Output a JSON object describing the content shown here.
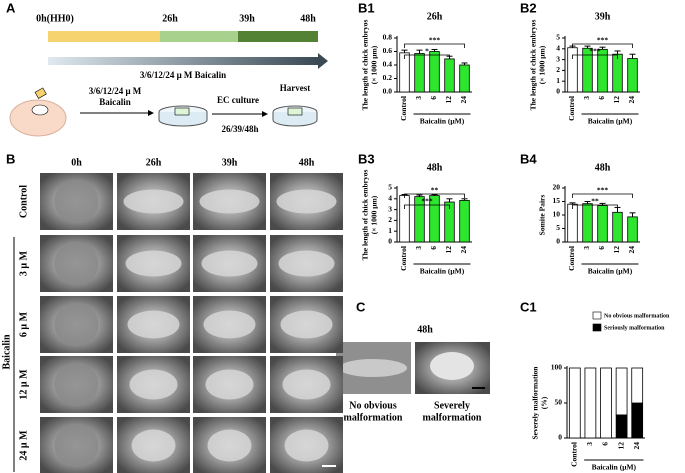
{
  "panel_labels": {
    "a": "A",
    "b": "B",
    "c": "C"
  },
  "timeline": {
    "labels": [
      "0h(HH0)",
      "26h",
      "39h",
      "48h"
    ],
    "colors": [
      "#f6d36f",
      "#a9d18e",
      "#548235"
    ],
    "treatment": "3/6/12/24 μ M Baicalin"
  },
  "workflow": {
    "dose": [
      "3/6/12/24 μ M",
      "Baicalin"
    ],
    "culture": "EC culture",
    "times": "26/39/48h",
    "harvest": "Harvest"
  },
  "image_grid": {
    "columns": [
      "0h",
      "26h",
      "39h",
      "48h"
    ],
    "rows": [
      "Control",
      "3 μ M",
      "6 μ M",
      "12 μ M",
      "24 μ M"
    ],
    "group_label": "Baicalin"
  },
  "outcomes": {
    "title": "48h",
    "labels": [
      [
        "No obvious",
        "malformation"
      ],
      [
        "Severely",
        "malformation"
      ]
    ]
  },
  "chart_data": [
    {
      "type": "bar",
      "panel": "B1",
      "title": "26h",
      "y_label": [
        "The length of chick embryos",
        "(× 1000 μm)"
      ],
      "group_label": "Baicalin (μM)",
      "categories": [
        "Control",
        "3",
        "6",
        "12",
        "24"
      ],
      "values": [
        0.58,
        0.57,
        0.6,
        0.49,
        0.4
      ],
      "errors": [
        0.04,
        0.05,
        0.03,
        0.04,
        0.03
      ],
      "colors": [
        "#ffffff",
        "#2ee62e",
        "#2ee62e",
        "#2ee62e",
        "#2ee62e"
      ],
      "ylim": [
        0,
        0.8
      ],
      "yticks": [
        {
          "value": 0,
          "label": "0.0"
        },
        0.2,
        0.4,
        0.6,
        0.8
      ],
      "annotations": [
        {
          "text": "***",
          "between": [
            "Control",
            "24"
          ]
        },
        {
          "text": "*",
          "between": [
            "Control",
            "12"
          ]
        }
      ]
    },
    {
      "type": "bar",
      "panel": "B2",
      "title": "39h",
      "y_label": [
        "The length of chick embryos",
        "(× 1000 μm)"
      ],
      "group_label": "Baicalin (μM)",
      "categories": [
        "Control",
        "3",
        "6",
        "12",
        "24"
      ],
      "values": [
        4.1,
        4.05,
        3.95,
        3.5,
        3.1
      ],
      "errors": [
        0.15,
        0.2,
        0.2,
        0.3,
        0.4
      ],
      "colors": [
        "#ffffff",
        "#2ee62e",
        "#2ee62e",
        "#2ee62e",
        "#2ee62e"
      ],
      "ylim": [
        0,
        5
      ],
      "yticks": [
        0,
        1,
        2,
        3,
        4,
        5
      ],
      "annotations": [
        {
          "text": "***",
          "between": [
            "Control",
            "24"
          ]
        },
        {
          "text": "***",
          "between": [
            "Control",
            "12"
          ]
        }
      ]
    },
    {
      "type": "bar",
      "panel": "B3",
      "title": "48h",
      "y_label": [
        "The length of chick embryos",
        "(× 1000 μm)"
      ],
      "group_label": "Baicalin (μM)",
      "categories": [
        "Control",
        "3",
        "6",
        "12",
        "24"
      ],
      "values": [
        4.3,
        4.2,
        4.3,
        3.7,
        3.85
      ],
      "errors": [
        0.1,
        0.15,
        0.1,
        0.3,
        0.15
      ],
      "colors": [
        "#ffffff",
        "#2ee62e",
        "#2ee62e",
        "#2ee62e",
        "#2ee62e"
      ],
      "ylim": [
        0,
        5
      ],
      "yticks": [
        0,
        1,
        2,
        3,
        4,
        5
      ],
      "annotations": [
        {
          "text": "**",
          "between": [
            "Control",
            "24"
          ]
        },
        {
          "text": "***",
          "between": [
            "Control",
            "12"
          ]
        }
      ]
    },
    {
      "type": "bar",
      "panel": "B4",
      "title": "48h",
      "y_label": [
        "Somite Pairs"
      ],
      "group_label": "Baicalin (μM)",
      "categories": [
        "Control",
        "3",
        "6",
        "12",
        "24"
      ],
      "values": [
        14,
        14.2,
        13.5,
        11,
        9.3
      ],
      "errors": [
        0.5,
        0.8,
        0.8,
        1.8,
        1.5
      ],
      "colors": [
        "#ffffff",
        "#2ee62e",
        "#2ee62e",
        "#2ee62e",
        "#2ee62e"
      ],
      "ylim": [
        0,
        20
      ],
      "yticks": [
        0,
        5,
        10,
        15,
        20
      ],
      "annotations": [
        {
          "text": "***",
          "between": [
            "Control",
            "24"
          ]
        },
        {
          "text": "**",
          "between": [
            "Control",
            "12"
          ]
        }
      ]
    },
    {
      "type": "stacked_bar",
      "panel": "C1",
      "y_label": [
        "Severely malformation",
        "(%)"
      ],
      "group_label": "Baicalin (μM)",
      "categories": [
        "Control",
        "3",
        "6",
        "12",
        "24"
      ],
      "series": [
        {
          "name": "Seriously malformation",
          "color": "#000000",
          "values": [
            0,
            0,
            0,
            33,
            50
          ]
        },
        {
          "name": "No obvious malformation",
          "color": "#ffffff",
          "values": [
            100,
            100,
            100,
            67,
            50
          ]
        }
      ],
      "ylim": [
        0,
        100
      ],
      "yticks": [
        0,
        50,
        100
      ]
    }
  ]
}
